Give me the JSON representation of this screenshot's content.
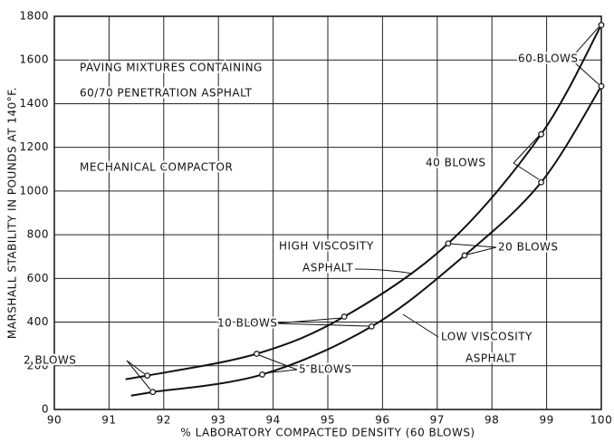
{
  "chart_data": {
    "type": "line",
    "x_label": "% LABORATORY COMPACTED DENSITY (60 BLOWS)",
    "y_label": "MARSHALL STABILITY IN POUNDS AT 140°F.",
    "xlim": [
      90,
      100
    ],
    "ylim": [
      0,
      1800
    ],
    "xticks": [
      90,
      91,
      92,
      93,
      94,
      95,
      96,
      97,
      98,
      99,
      100
    ],
    "yticks": [
      0,
      200,
      400,
      600,
      800,
      1000,
      1200,
      1400,
      1600,
      1800
    ],
    "grid": true,
    "series": [
      {
        "color": "#111111",
        "x": [
          91.7,
          93.7,
          95.3,
          97.2,
          98.9,
          100
        ],
        "values": [
          155,
          255,
          425,
          760,
          1260,
          1760
        ]
      },
      {
        "color": "#111111",
        "x": [
          91.8,
          93.8,
          95.8,
          97.5,
          98.9,
          100
        ],
        "values": [
          80,
          160,
          380,
          705,
          1040,
          1480
        ]
      }
    ],
    "annotations": [
      "PAVING MIXTURES CONTAINING",
      "60/70 PENETRATION ASPHALT",
      "MECHANICAL COMPACTOR",
      "60 BLOWS",
      "40 BLOWS",
      "HIGH VISCOSITY",
      "ASPHALT",
      "20 BLOWS",
      "10 BLOWS",
      "LOW VISCOSITY",
      "ASPHALT",
      "2 BLOWS",
      "5 BLOWS"
    ]
  }
}
